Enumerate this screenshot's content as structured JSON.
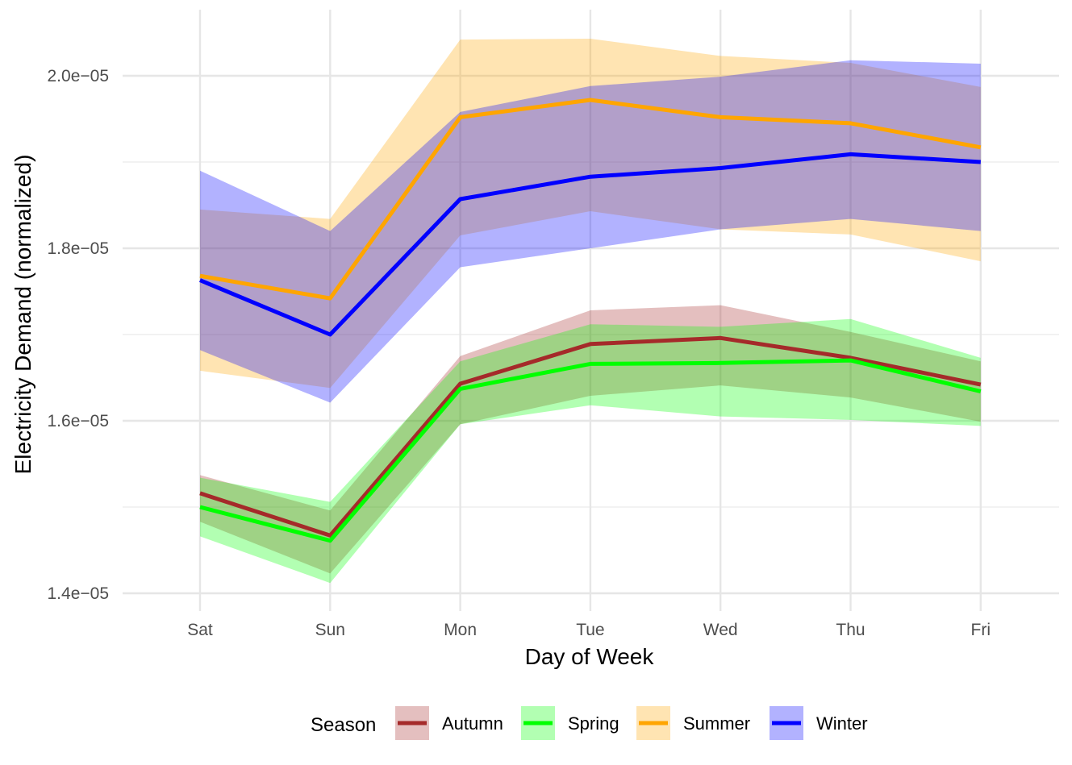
{
  "chart_data": {
    "type": "line",
    "xlabel": "Day of Week",
    "ylabel": "Electricity Demand (normalized)",
    "categories": [
      "Sat",
      "Sun",
      "Mon",
      "Tue",
      "Wed",
      "Thu",
      "Fri"
    ],
    "ylim": [
      1.365e-05,
      2.065e-05
    ],
    "y_ticks": [
      1.4e-05,
      1.6e-05,
      1.8e-05,
      2e-05
    ],
    "y_tick_labels": [
      "1.4e−05",
      "1.6e−05",
      "1.8e−05",
      "2.0e−05"
    ],
    "y_minor_ticks": [
      1.5e-05,
      1.7e-05,
      1.9e-05
    ],
    "grid": true,
    "legend": {
      "title": "Season",
      "position": "bottom"
    },
    "series": [
      {
        "name": "Autumn",
        "color": "#a52a2a",
        "values": [
          1.516e-05,
          1.467e-05,
          1.643e-05,
          1.689e-05,
          1.696e-05,
          1.673e-05,
          1.642e-05
        ],
        "band_upper": [
          1.537e-05,
          1.496e-05,
          1.675e-05,
          1.728e-05,
          1.734e-05,
          1.703e-05,
          1.669e-05
        ],
        "band_lower": [
          1.483e-05,
          1.423e-05,
          1.596e-05,
          1.629e-05,
          1.641e-05,
          1.627e-05,
          1.599e-05
        ]
      },
      {
        "name": "Spring",
        "color": "#00ff00",
        "values": [
          1.5e-05,
          1.461e-05,
          1.637e-05,
          1.666e-05,
          1.667e-05,
          1.67e-05,
          1.634e-05
        ],
        "band_upper": [
          1.534e-05,
          1.506e-05,
          1.669e-05,
          1.712e-05,
          1.709e-05,
          1.718e-05,
          1.673e-05
        ],
        "band_lower": [
          1.466e-05,
          1.412e-05,
          1.596e-05,
          1.618e-05,
          1.605e-05,
          1.601e-05,
          1.594e-05
        ]
      },
      {
        "name": "Summer",
        "color": "#ffa500",
        "values": [
          1.768e-05,
          1.742e-05,
          1.952e-05,
          1.972e-05,
          1.952e-05,
          1.945e-05,
          1.917e-05
        ],
        "band_upper": [
          1.845e-05,
          1.834e-05,
          2.042e-05,
          2.043e-05,
          2.023e-05,
          2.015e-05,
          1.987e-05
        ],
        "band_lower": [
          1.658e-05,
          1.638e-05,
          1.815e-05,
          1.843e-05,
          1.822e-05,
          1.816e-05,
          1.785e-05
        ]
      },
      {
        "name": "Winter",
        "color": "#0000ff",
        "values": [
          1.763e-05,
          1.7e-05,
          1.857e-05,
          1.883e-05,
          1.893e-05,
          1.909e-05,
          1.9e-05
        ],
        "band_upper": [
          1.89e-05,
          1.82e-05,
          1.958e-05,
          1.988e-05,
          1.999e-05,
          2.018e-05,
          2.014e-05
        ],
        "band_lower": [
          1.682e-05,
          1.621e-05,
          1.778e-05,
          1.8e-05,
          1.822e-05,
          1.834e-05,
          1.82e-05
        ]
      }
    ]
  }
}
